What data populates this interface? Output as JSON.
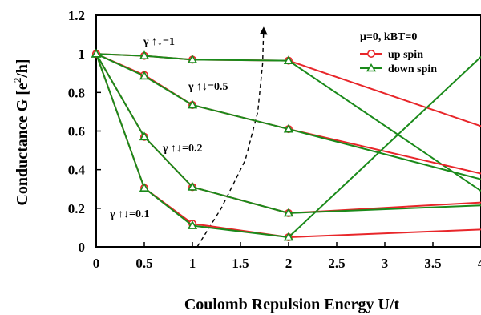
{
  "chart_data": {
    "type": "line",
    "xlabel": "Coulomb Repulsion Energy  U/t",
    "ylabel": "Conductance  G [e",
    "ylabel_sup": "2",
    "ylabel_tail": "/h]",
    "xlim": [
      0,
      4
    ],
    "ylim": [
      0,
      1.2
    ],
    "x_ticks": [
      "0",
      "0.5",
      "1",
      "1.5",
      "2",
      "2.5",
      "3",
      "3.5",
      "4"
    ],
    "y_ticks": [
      "0",
      "0.2",
      "0.4",
      "0.6",
      "0.8",
      "1",
      "1.2"
    ],
    "grid": false,
    "legend_title": "μ=0, kBT=0",
    "legend": [
      {
        "label": "up spin",
        "color": "#e8262a",
        "marker": "circle"
      },
      {
        "label": "down spin",
        "color": "#1a8a1a",
        "marker": "triangle"
      }
    ],
    "annotations": [
      "γ ↑↓=1",
      "γ ↑↓=0.5",
      "γ ↑↓=0.2",
      "γ ↑↓=0.1"
    ],
    "series": [
      {
        "spin": "up spin",
        "gamma": "1",
        "color": "#e8262a",
        "x": [
          0,
          0.5,
          1,
          2,
          4
        ],
        "y": [
          1.0,
          0.99,
          0.97,
          0.965,
          0.625
        ]
      },
      {
        "spin": "down spin",
        "gamma": "1",
        "color": "#1a8a1a",
        "x": [
          0,
          0.5,
          1,
          2,
          4
        ],
        "y": [
          1.0,
          0.99,
          0.97,
          0.965,
          0.29
        ]
      },
      {
        "spin": "up spin",
        "gamma": "0.5",
        "color": "#e8262a",
        "x": [
          0,
          0.5,
          1,
          2,
          4
        ],
        "y": [
          1.0,
          0.89,
          0.735,
          0.61,
          0.38
        ]
      },
      {
        "spin": "down spin",
        "gamma": "0.5",
        "color": "#1a8a1a",
        "x": [
          0,
          0.5,
          1,
          2,
          4
        ],
        "y": [
          1.0,
          0.885,
          0.735,
          0.61,
          0.35
        ]
      },
      {
        "spin": "up spin",
        "gamma": "0.2",
        "color": "#e8262a",
        "x": [
          0,
          0.5,
          1,
          2,
          4
        ],
        "y": [
          1.0,
          0.57,
          0.31,
          0.175,
          0.23
        ]
      },
      {
        "spin": "down spin",
        "gamma": "0.2",
        "color": "#1a8a1a",
        "x": [
          0,
          0.5,
          1,
          2,
          4
        ],
        "y": [
          1.0,
          0.57,
          0.31,
          0.175,
          0.215
        ]
      },
      {
        "spin": "up spin",
        "gamma": "0.1",
        "color": "#e8262a",
        "x": [
          0,
          0.5,
          1,
          2,
          4
        ],
        "y": [
          1.0,
          0.305,
          0.12,
          0.05,
          0.09
        ]
      },
      {
        "spin": "down spin",
        "gamma": "0.1",
        "color": "#1a8a1a",
        "x": [
          0,
          0.5,
          1,
          2,
          4
        ],
        "y": [
          1.0,
          0.305,
          0.11,
          0.05,
          0.985
        ]
      }
    ],
    "trend_arrow": {
      "style": "dashed",
      "x": [
        1.05,
        1.3,
        1.55,
        1.68,
        1.73,
        1.74
      ],
      "y": [
        0.0,
        0.2,
        0.45,
        0.7,
        0.95,
        1.12
      ]
    }
  }
}
